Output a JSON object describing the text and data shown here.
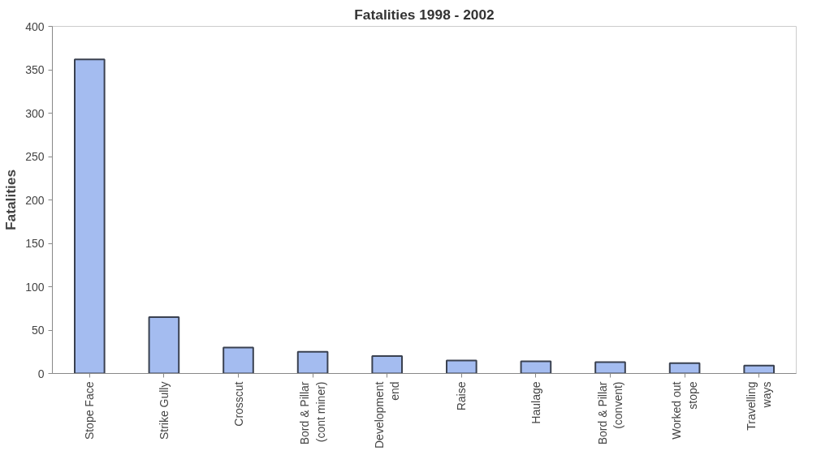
{
  "chart_data": {
    "type": "bar",
    "title": "Fatalities 1998 - 2002",
    "ylabel": "Fatalities",
    "categories": [
      "Stope Face",
      "Strike Gully",
      "Crosscut",
      "Bord & Pillar (cont miner)",
      "Development end",
      "Raise",
      "Haulage",
      "Bord & Pillar (convent)",
      "Worked out stope",
      "Travelling ways"
    ],
    "values": [
      362,
      65,
      30,
      25,
      20,
      15,
      14,
      13,
      12,
      9
    ],
    "color": "#a4bcf0",
    "ylim": [
      0,
      400
    ],
    "yticks": [
      0,
      50,
      100,
      150,
      200,
      250,
      300,
      350,
      400
    ],
    "grid": false
  }
}
